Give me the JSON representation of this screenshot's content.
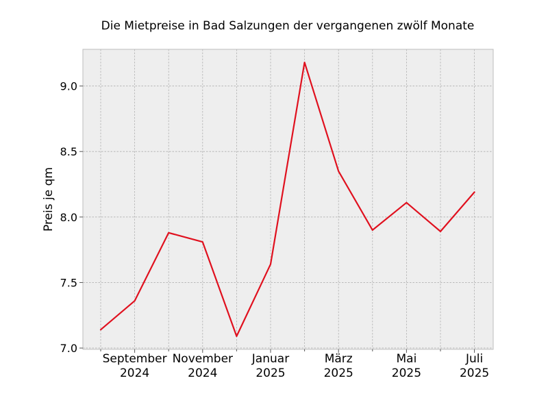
{
  "chart_data": {
    "type": "line",
    "title": "Die Mietpreise in Bad Salzungen der vergangenen zwölf Monate",
    "xlabel": "",
    "ylabel": "Preis je qm",
    "x": [
      "2024-08",
      "2024-09",
      "2024-10",
      "2024-11",
      "2024-12",
      "2025-01",
      "2025-02",
      "2025-03",
      "2025-04",
      "2025-05",
      "2025-06",
      "2025-07"
    ],
    "series": [
      {
        "values": [
          7.14,
          7.36,
          7.88,
          7.81,
          7.09,
          7.64,
          9.18,
          8.35,
          7.9,
          8.11,
          7.89,
          8.19
        ],
        "color": "#e0101e"
      }
    ],
    "ylim": [
      6.99,
      9.28
    ],
    "yticks": [
      {
        "value": 7.0,
        "label": "7.0"
      },
      {
        "value": 7.5,
        "label": "7.5"
      },
      {
        "value": 8.0,
        "label": "8.0"
      },
      {
        "value": 8.5,
        "label": "8.5"
      },
      {
        "value": 9.0,
        "label": "9.0"
      }
    ],
    "xticks_major": [
      {
        "x": "2024-09",
        "label": "September",
        "sublabel": "2024"
      },
      {
        "x": "2024-11",
        "label": "November",
        "sublabel": "2024"
      },
      {
        "x": "2025-01",
        "label": "Januar",
        "sublabel": "2025"
      },
      {
        "x": "2025-03",
        "label": "März",
        "sublabel": "2025"
      },
      {
        "x": "2025-05",
        "label": "Mai",
        "sublabel": "2025"
      },
      {
        "x": "2025-07",
        "label": "Juli",
        "sublabel": "2025"
      }
    ],
    "xticks_minor": [
      "2024-08",
      "2024-10",
      "2024-12",
      "2025-02",
      "2025-04",
      "2025-06"
    ],
    "grid": true,
    "style": {
      "plot_background": "#eeeeee",
      "grid_color": "#b0b0b0",
      "spine_color": "#bcbcbc"
    }
  }
}
